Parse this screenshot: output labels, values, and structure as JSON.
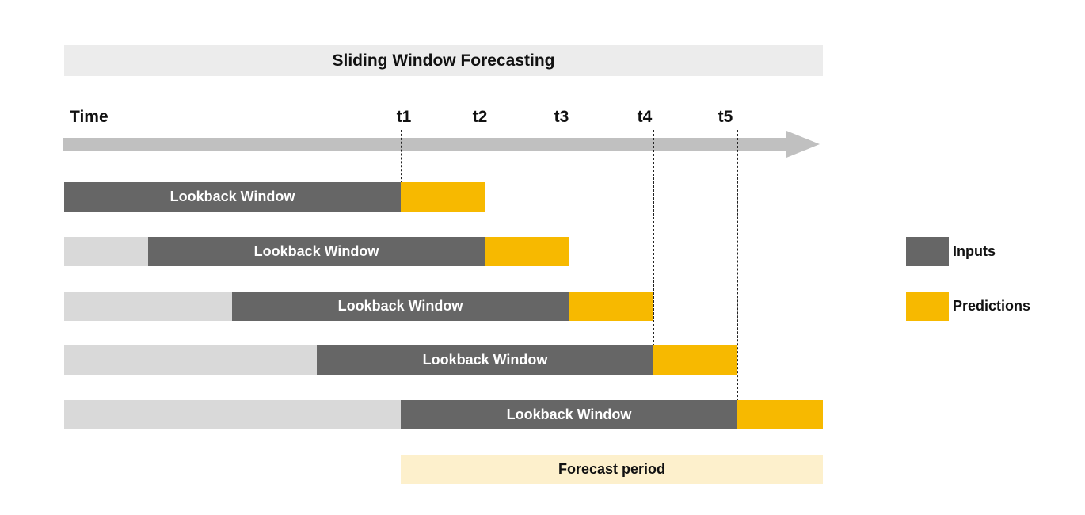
{
  "title": "Sliding Window Forecasting",
  "axis": {
    "label": "Time",
    "ticks": [
      "t1",
      "t2",
      "t3",
      "t4",
      "t5"
    ]
  },
  "rows": [
    {
      "label": "Lookback Window"
    },
    {
      "label": "Lookback Window"
    },
    {
      "label": "Lookback Window"
    },
    {
      "label": "Lookback Window"
    },
    {
      "label": "Lookback Window"
    }
  ],
  "forecast_label": "Forecast period",
  "legend": {
    "inputs": "Inputs",
    "predictions": "Predictions"
  },
  "colors": {
    "inputs": "#666666",
    "predictions": "#f7b900",
    "history": "#d9d9d9",
    "forecast_band": "#fdf0cc",
    "title_band": "#ececec",
    "arrow": "#c0c0c0"
  }
}
